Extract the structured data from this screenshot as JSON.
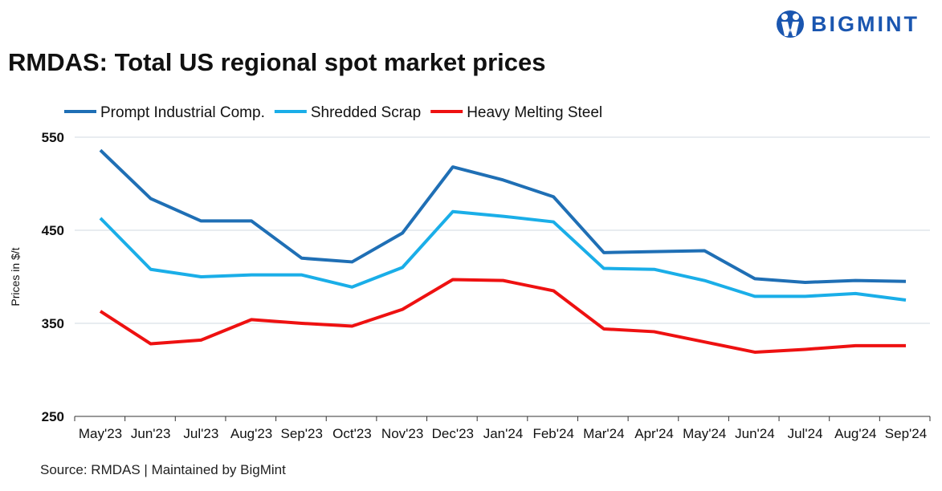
{
  "header": {
    "title": "RMDAS: Total US regional spot market prices",
    "logo_text": "BIGMINT"
  },
  "footer": {
    "source": "Source: RMDAS | Maintained by BigMint"
  },
  "chart_data": {
    "type": "line",
    "title": "RMDAS: Total US regional spot market prices",
    "xlabel": "",
    "ylabel": "Prices in $/t",
    "ylim": [
      250,
      550
    ],
    "yticks": [
      250,
      350,
      450,
      550
    ],
    "grid": true,
    "legend": "top-left",
    "categories": [
      "May'23",
      "Jun'23",
      "Jul'23",
      "Aug'23",
      "Sep'23",
      "Oct'23",
      "Nov'23",
      "Dec'23",
      "Jan'24",
      "Feb'24",
      "Mar'24",
      "Apr'24",
      "May'24",
      "Jun'24",
      "Jul'24",
      "Aug'24",
      "Sep'24"
    ],
    "series": [
      {
        "name": "Prompt Industrial Comp.",
        "color": "#1f6fb5",
        "values": [
          536,
          484,
          460,
          460,
          420,
          416,
          447,
          518,
          504,
          486,
          426,
          427,
          428,
          398,
          394,
          396,
          395
        ]
      },
      {
        "name": "Shredded Scrap",
        "color": "#1aaee8",
        "values": [
          463,
          408,
          400,
          402,
          402,
          389,
          410,
          470,
          465,
          459,
          409,
          408,
          396,
          379,
          379,
          382,
          375
        ]
      },
      {
        "name": "Heavy Melting Steel",
        "color": "#ee1111",
        "values": [
          363,
          328,
          332,
          354,
          350,
          347,
          365,
          397,
          396,
          385,
          344,
          341,
          330,
          319,
          322,
          326,
          326
        ]
      }
    ]
  }
}
